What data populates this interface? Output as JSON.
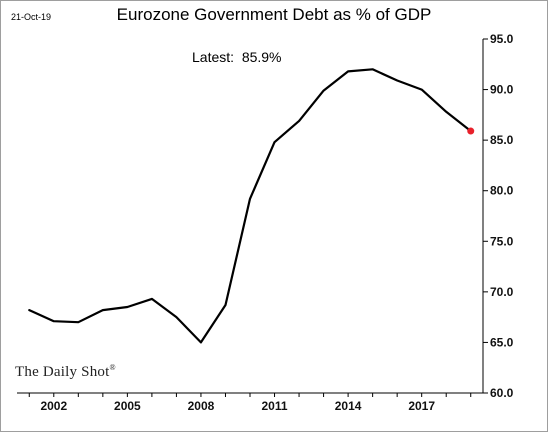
{
  "header": {
    "date": "21-Oct-19",
    "title": "Eurozone Government Debt as % of GDP"
  },
  "annotation": {
    "latest_label": "Latest:",
    "latest_value": "85.9%"
  },
  "brand": {
    "name": "The Daily Shot",
    "mark": "®"
  },
  "colors": {
    "line": "#000000",
    "latest_marker": "#e8202a",
    "axis": "#000000"
  },
  "chart_data": {
    "type": "line",
    "title": "Eurozone Government Debt as % of GDP",
    "xlabel": "",
    "ylabel": "",
    "xlim": [
      2000.5,
      2019.5
    ],
    "ylim": [
      60,
      95
    ],
    "grid": false,
    "y_axis_side": "right",
    "x_ticks": [
      2002,
      2005,
      2008,
      2011,
      2014,
      2017
    ],
    "x_tick_labels": [
      "2002",
      "2005",
      "2008",
      "2011",
      "2014",
      "2017"
    ],
    "y_ticks": [
      60,
      65,
      70,
      75,
      80,
      85,
      90,
      95
    ],
    "y_tick_labels": [
      "60.0",
      "65.0",
      "70.0",
      "75.0",
      "80.0",
      "85.0",
      "90.0",
      "95.0"
    ],
    "series": [
      {
        "x": [
          2001,
          2002,
          2003,
          2004,
          2005,
          2006,
          2007,
          2008,
          2009,
          2010,
          2011,
          2012,
          2013,
          2014,
          2015,
          2016,
          2017,
          2018,
          2019
        ],
        "values": [
          68.2,
          67.1,
          67.0,
          68.2,
          68.5,
          69.3,
          67.5,
          65.0,
          68.7,
          79.2,
          84.8,
          86.9,
          89.9,
          91.8,
          92.0,
          90.9,
          90.0,
          87.8,
          85.9
        ]
      }
    ],
    "latest_point": {
      "x": 2019,
      "y": 85.9
    }
  }
}
